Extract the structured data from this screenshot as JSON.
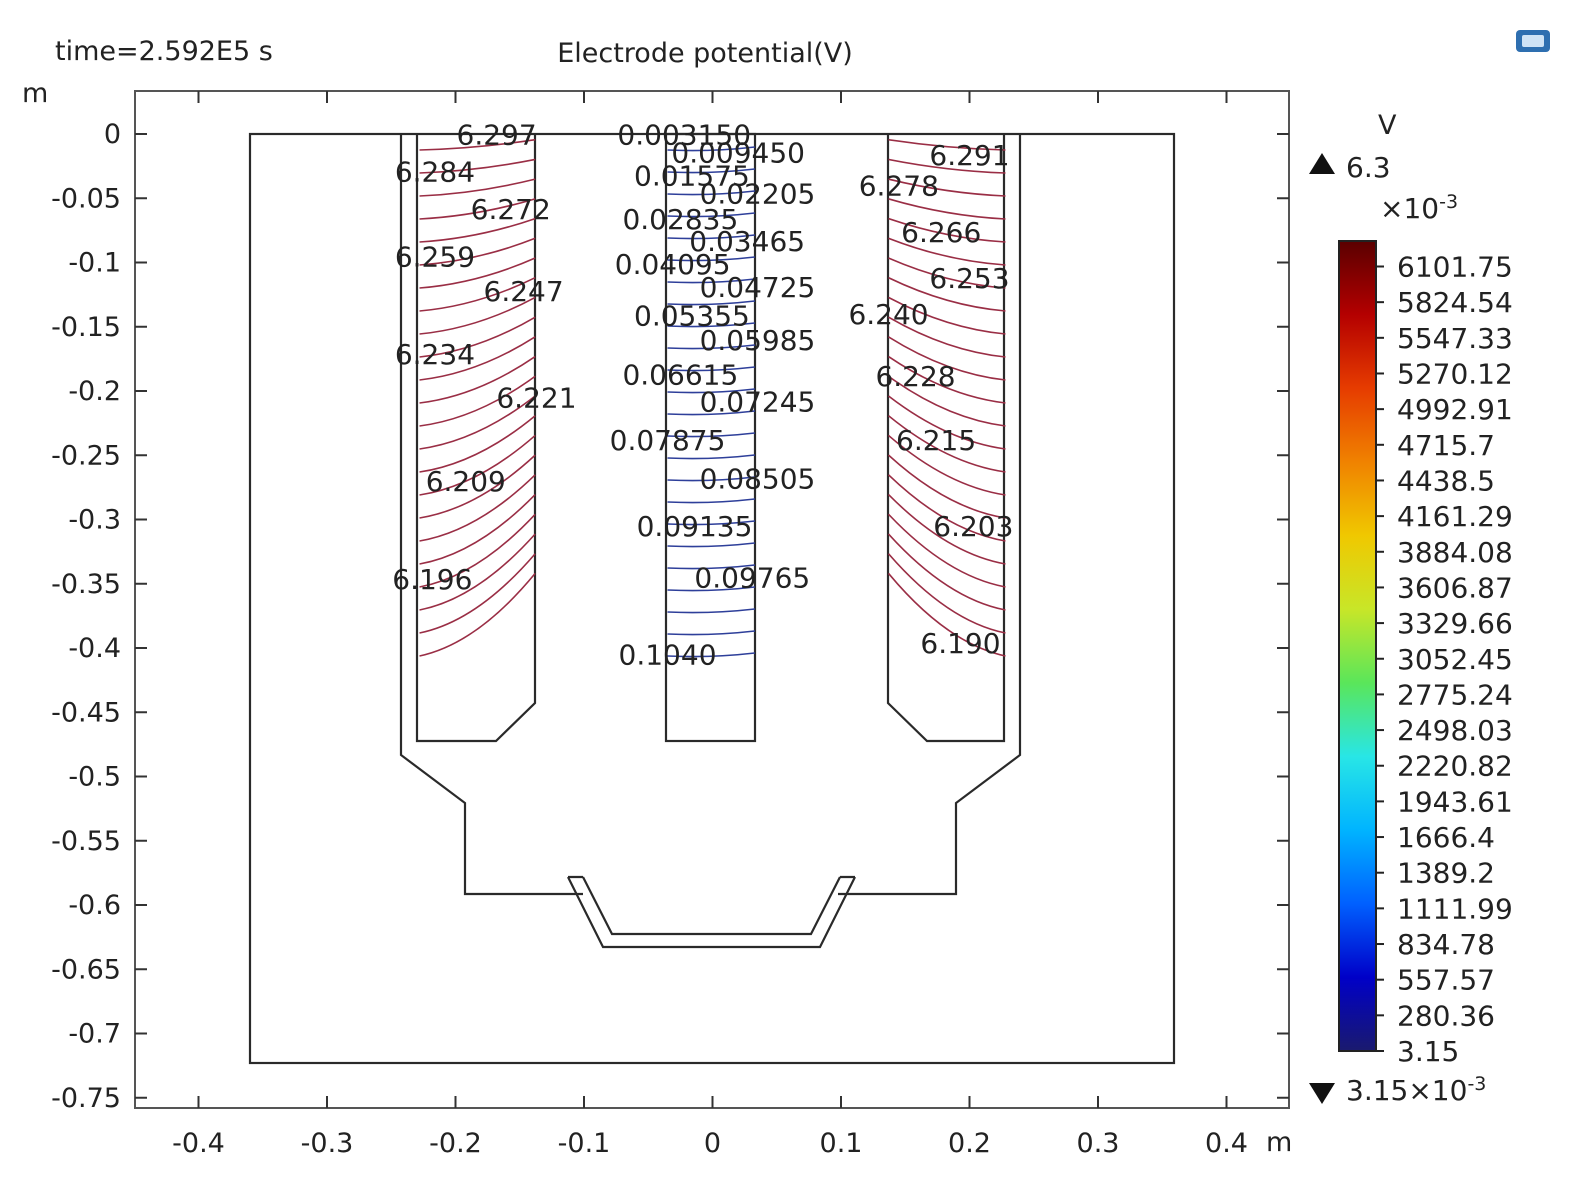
{
  "header": {
    "time_label": "time=2.592E5 s",
    "title": "Electrode potential(V)"
  },
  "toolbar": {
    "icon": "app-window-icon"
  },
  "axes": {
    "x_unit": "m",
    "y_unit": "m",
    "x_ticks": [
      "-0.4",
      "-0.3",
      "-0.2",
      "-0.1",
      "0",
      "0.1",
      "0.2",
      "0.3",
      "0.4"
    ],
    "y_ticks": [
      "0",
      "-0.05",
      "-0.1",
      "-0.15",
      "-0.2",
      "-0.25",
      "-0.3",
      "-0.35",
      "-0.4",
      "-0.45",
      "-0.5",
      "-0.55",
      "-0.6",
      "-0.65",
      "-0.7",
      "-0.75"
    ]
  },
  "colorbar": {
    "unit": "V",
    "max_label": "6.3",
    "scale_label": "×10",
    "scale_exp": "-3",
    "min_label": "3.15×10",
    "min_exp": "-3",
    "ticks": [
      "6101.75",
      "5824.54",
      "5547.33",
      "5270.12",
      "4992.91",
      "4715.7",
      "4438.5",
      "4161.29",
      "3884.08",
      "3606.87",
      "3329.66",
      "3052.45",
      "2775.24",
      "2498.03",
      "2220.82",
      "1943.61",
      "1666.4",
      "1389.2",
      "1111.99",
      "834.78",
      "557.57",
      "280.36",
      "3.15"
    ],
    "colors": [
      "#1a1a6e",
      "#0000c8",
      "#0060ff",
      "#00b4ff",
      "#28e6e6",
      "#5ae65a",
      "#c8e628",
      "#f0c800",
      "#f08200",
      "#e63c00",
      "#b40000",
      "#5a0000"
    ]
  },
  "chart_data": {
    "type": "contour",
    "title": "Electrode potential(V)",
    "subtitle": "time=2.592E5 s",
    "xlabel": "m",
    "ylabel": "m",
    "xlim": [
      -0.45,
      0.45
    ],
    "ylim": [
      -0.75,
      0.0
    ],
    "unit": "V",
    "range": [
      0.00315,
      6.3
    ],
    "regions": [
      {
        "name": "left-electrode",
        "labels": [
          {
            "text": "6.297",
            "x": -0.168,
            "y": -0.008
          },
          {
            "text": "6.284",
            "x": -0.216,
            "y": -0.037
          },
          {
            "text": "6.272",
            "x": -0.157,
            "y": -0.066
          },
          {
            "text": "6.259",
            "x": -0.216,
            "y": -0.103
          },
          {
            "text": "6.247",
            "x": -0.147,
            "y": -0.13
          },
          {
            "text": "6.234",
            "x": -0.216,
            "y": -0.179
          },
          {
            "text": "6.221",
            "x": -0.137,
            "y": -0.213
          },
          {
            "text": "6.209",
            "x": -0.192,
            "y": -0.278
          },
          {
            "text": "6.196",
            "x": -0.218,
            "y": -0.354
          }
        ]
      },
      {
        "name": "center-electrode",
        "labels": [
          {
            "text": "0.003150",
            "x": -0.022,
            "y": -0.008
          },
          {
            "text": "0.009450",
            "x": 0.02,
            "y": -0.022
          },
          {
            "text": "0.01575",
            "x": -0.016,
            "y": -0.04
          },
          {
            "text": "0.02205",
            "x": 0.035,
            "y": -0.054
          },
          {
            "text": "0.02835",
            "x": -0.025,
            "y": -0.074
          },
          {
            "text": "0.03465",
            "x": 0.027,
            "y": -0.091
          },
          {
            "text": "0.04095",
            "x": -0.031,
            "y": -0.109
          },
          {
            "text": "0.04725",
            "x": 0.035,
            "y": -0.127
          },
          {
            "text": "0.05355",
            "x": -0.016,
            "y": -0.149
          },
          {
            "text": "0.05985",
            "x": 0.035,
            "y": -0.168
          },
          {
            "text": "0.06615",
            "x": -0.025,
            "y": -0.195
          },
          {
            "text": "0.07245",
            "x": 0.035,
            "y": -0.216
          },
          {
            "text": "0.07875",
            "x": -0.035,
            "y": -0.246
          },
          {
            "text": "0.08505",
            "x": 0.035,
            "y": -0.276
          },
          {
            "text": "0.09135",
            "x": -0.014,
            "y": -0.313
          },
          {
            "text": "0.09765",
            "x": 0.031,
            "y": -0.353
          },
          {
            "text": "0.1040",
            "x": -0.035,
            "y": -0.413
          }
        ]
      },
      {
        "name": "right-electrode",
        "labels": [
          {
            "text": "6.291",
            "x": 0.2,
            "y": -0.024
          },
          {
            "text": "6.278",
            "x": 0.145,
            "y": -0.048
          },
          {
            "text": "6.266",
            "x": 0.178,
            "y": -0.084
          },
          {
            "text": "6.253",
            "x": 0.2,
            "y": -0.12
          },
          {
            "text": "6.240",
            "x": 0.137,
            "y": -0.148
          },
          {
            "text": "6.228",
            "x": 0.158,
            "y": -0.196
          },
          {
            "text": "6.215",
            "x": 0.174,
            "y": -0.246
          },
          {
            "text": "6.203",
            "x": 0.203,
            "y": -0.313
          },
          {
            "text": "6.190",
            "x": 0.193,
            "y": -0.404
          }
        ]
      }
    ]
  }
}
